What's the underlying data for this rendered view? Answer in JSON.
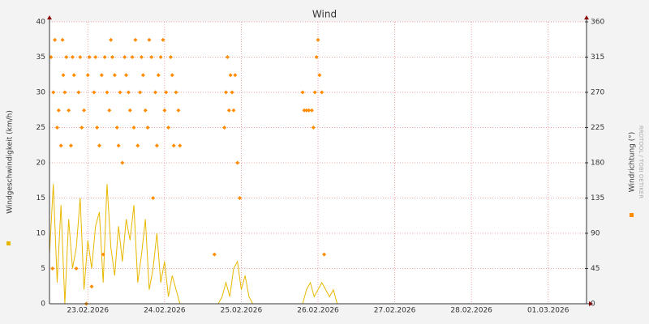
{
  "chart_data": {
    "type": "line",
    "title": "Wind",
    "watermark": "RRDTOOL / TOBI OETIKER",
    "xlim": [
      0,
      7
    ],
    "xticks": [
      {
        "value": 0.5,
        "label": "23.02.2026"
      },
      {
        "value": 1.5,
        "label": "24.02.2026"
      },
      {
        "value": 2.5,
        "label": "25.02.2026"
      },
      {
        "value": 3.5,
        "label": "26.02.2026"
      },
      {
        "value": 4.5,
        "label": "27.02.2026"
      },
      {
        "value": 5.5,
        "label": "28.02.2026"
      },
      {
        "value": 6.5,
        "label": "01.03.2026"
      }
    ],
    "ylim": [
      0,
      40
    ],
    "yticks": [
      0,
      5,
      10,
      15,
      20,
      25,
      30,
      35,
      40
    ],
    "y2lim": [
      0,
      360
    ],
    "y2ticks": [
      0,
      45,
      90,
      135,
      180,
      225,
      270,
      315,
      360
    ],
    "grid": true,
    "series": [
      {
        "name": "Windgeschwindigkeit (km/h)",
        "color": "#e8b800",
        "style": "line",
        "x": [
          0,
          0.05,
          0.1,
          0.15,
          0.2,
          0.25,
          0.3,
          0.35,
          0.4,
          0.45,
          0.5,
          0.55,
          0.6,
          0.65,
          0.7,
          0.75,
          0.8,
          0.85,
          0.9,
          0.95,
          1.0,
          1.05,
          1.1,
          1.15,
          1.2,
          1.25,
          1.3,
          1.35,
          1.4,
          1.45,
          1.5,
          1.55,
          1.6,
          1.65,
          1.7,
          1.95,
          2.2,
          2.25,
          2.3,
          2.35,
          2.4,
          2.45,
          2.5,
          2.55,
          2.6,
          2.65,
          3.0,
          3.3,
          3.35,
          3.4,
          3.45,
          3.5,
          3.55,
          3.6,
          3.65,
          3.7,
          3.75
        ],
        "values": [
          7,
          17,
          3,
          14,
          0,
          12,
          5,
          8,
          15,
          2,
          9,
          5,
          11,
          13,
          3,
          17,
          8,
          4,
          11,
          6,
          12,
          9,
          14,
          3,
          7,
          12,
          2,
          5,
          10,
          3,
          6,
          1,
          4,
          2,
          0,
          null,
          0,
          1,
          3,
          1,
          5,
          6,
          2,
          4,
          1,
          0,
          null,
          0,
          2,
          3,
          1,
          2,
          3,
          2,
          1,
          2,
          0
        ]
      },
      {
        "name": "Windrichtung (°)",
        "color": "#ff8c00",
        "style": "marker",
        "axis": "y2",
        "x": [
          0.02,
          0.04,
          0.05,
          0.07,
          0.1,
          0.12,
          0.15,
          0.17,
          0.18,
          0.2,
          0.22,
          0.25,
          0.28,
          0.3,
          0.32,
          0.35,
          0.38,
          0.4,
          0.42,
          0.45,
          0.48,
          0.5,
          0.52,
          0.55,
          0.58,
          0.6,
          0.62,
          0.65,
          0.68,
          0.7,
          0.72,
          0.75,
          0.78,
          0.8,
          0.82,
          0.85,
          0.88,
          0.9,
          0.92,
          0.95,
          0.98,
          1.0,
          1.03,
          1.05,
          1.08,
          1.1,
          1.12,
          1.15,
          1.18,
          1.2,
          1.22,
          1.25,
          1.28,
          1.3,
          1.33,
          1.35,
          1.38,
          1.4,
          1.42,
          1.45,
          1.48,
          1.5,
          1.52,
          1.55,
          1.58,
          1.6,
          1.62,
          1.65,
          1.68,
          1.7,
          2.15,
          2.28,
          2.3,
          2.32,
          2.34,
          2.36,
          2.38,
          2.4,
          2.42,
          2.45,
          2.48,
          3.3,
          3.32,
          3.35,
          3.38,
          3.42,
          3.44,
          3.46,
          3.48,
          3.5,
          3.52,
          3.55,
          3.58
        ],
        "values": [
          315,
          45,
          270,
          337,
          225,
          247,
          202,
          337,
          292,
          270,
          315,
          247,
          202,
          315,
          292,
          45,
          270,
          315,
          225,
          247,
          0,
          292,
          315,
          22,
          270,
          315,
          225,
          202,
          292,
          63,
          315,
          270,
          247,
          337,
          315,
          292,
          225,
          202,
          270,
          180,
          315,
          292,
          270,
          247,
          315,
          225,
          337,
          202,
          270,
          315,
          292,
          247,
          225,
          337,
          315,
          135,
          270,
          202,
          292,
          315,
          337,
          247,
          270,
          225,
          315,
          292,
          202,
          270,
          247,
          202,
          63,
          225,
          270,
          315,
          247,
          292,
          270,
          247,
          292,
          180,
          135,
          270,
          247,
          247,
          247,
          247,
          225,
          270,
          315,
          337,
          292,
          270,
          63
        ]
      }
    ]
  }
}
